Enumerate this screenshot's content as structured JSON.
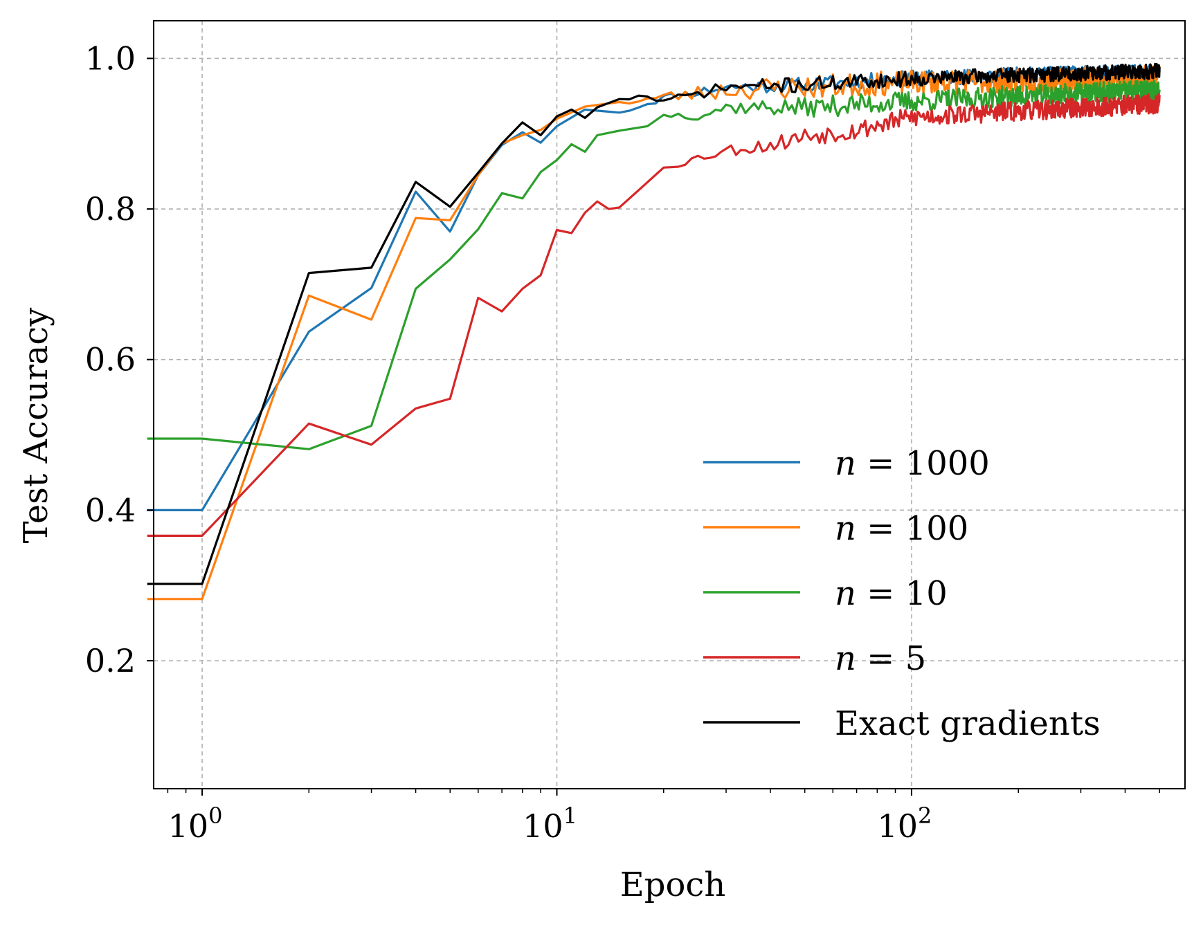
{
  "chart_data": {
    "type": "line",
    "title": "",
    "xlabel": "Epoch",
    "ylabel": "Test Accuracy",
    "xscale": "log",
    "xlim": [
      0.73,
      590
    ],
    "ylim": [
      0.03,
      1.05
    ],
    "grid": true,
    "legend_position": "lower-right",
    "x_ticks": [
      {
        "value": 1,
        "base": "10",
        "exp": "0"
      },
      {
        "value": 10,
        "base": "10",
        "exp": "1"
      },
      {
        "value": 100,
        "base": "10",
        "exp": "2"
      }
    ],
    "y_ticks": [
      {
        "value": 0.2,
        "label": "0.2"
      },
      {
        "value": 0.4,
        "label": "0.4"
      },
      {
        "value": 0.6,
        "label": "0.6"
      },
      {
        "value": 0.8,
        "label": "0.8"
      },
      {
        "value": 1.0,
        "label": "1.0"
      }
    ],
    "series": [
      {
        "name": "n = 1000",
        "var": "n",
        "rhs": " = 1000",
        "color": "#1f77b4",
        "x": [
          0.7,
          1,
          2,
          3,
          4,
          5,
          6,
          7,
          8,
          9,
          10,
          12,
          15,
          20,
          30,
          50,
          100,
          200,
          500
        ],
        "y": [
          0.4,
          0.4,
          0.637,
          0.695,
          0.823,
          0.77,
          0.845,
          0.885,
          0.902,
          0.888,
          0.91,
          0.932,
          0.928,
          0.948,
          0.962,
          0.965,
          0.974,
          0.978,
          0.982
        ],
        "noise_tail": {
          "from": 15,
          "amp": 0.01,
          "seed": 11
        }
      },
      {
        "name": "n = 100",
        "var": "n",
        "rhs": " = 100",
        "color": "#ff7f0e",
        "x": [
          0.7,
          1,
          2,
          3,
          4,
          5,
          6,
          7,
          8,
          9,
          10,
          12,
          15,
          20,
          30,
          50,
          100,
          200,
          500
        ],
        "y": [
          0.282,
          0.282,
          0.685,
          0.653,
          0.788,
          0.785,
          0.845,
          0.887,
          0.898,
          0.905,
          0.92,
          0.936,
          0.942,
          0.948,
          0.958,
          0.962,
          0.968,
          0.97,
          0.975
        ],
        "noise_tail": {
          "from": 15,
          "amp": 0.016,
          "seed": 23
        }
      },
      {
        "name": "n = 10",
        "var": "n",
        "rhs": " = 10",
        "color": "#2ca02c",
        "x": [
          0.7,
          1,
          2,
          3,
          4,
          5,
          6,
          7,
          8,
          9,
          10,
          11,
          12,
          13,
          15,
          18,
          20,
          25,
          30,
          50,
          100,
          200,
          500
        ],
        "y": [
          0.495,
          0.495,
          0.481,
          0.512,
          0.694,
          0.733,
          0.773,
          0.821,
          0.814,
          0.849,
          0.865,
          0.886,
          0.876,
          0.898,
          0.904,
          0.91,
          0.925,
          0.925,
          0.935,
          0.935,
          0.943,
          0.95,
          0.958
        ],
        "noise_tail": {
          "from": 20,
          "amp": 0.014,
          "seed": 37
        }
      },
      {
        "name": "n = 5",
        "var": "n",
        "rhs": " = 5",
        "color": "#d62728",
        "x": [
          0.7,
          1,
          2,
          3,
          4,
          5,
          6,
          7,
          8,
          9,
          10,
          11,
          12,
          13,
          14,
          15,
          17,
          20,
          25,
          30,
          40,
          50,
          70,
          100,
          200,
          500
        ],
        "y": [
          0.366,
          0.366,
          0.515,
          0.487,
          0.535,
          0.548,
          0.682,
          0.664,
          0.694,
          0.712,
          0.772,
          0.768,
          0.795,
          0.81,
          0.8,
          0.802,
          0.825,
          0.855,
          0.868,
          0.878,
          0.885,
          0.897,
          0.905,
          0.922,
          0.93,
          0.94
        ],
        "noise_tail": {
          "from": 20,
          "amp": 0.013,
          "seed": 53
        }
      },
      {
        "name": "Exact gradients",
        "var": "",
        "rhs": "Exact gradients",
        "color": "#000000",
        "x": [
          0.7,
          1,
          2,
          3,
          4,
          5,
          6,
          7,
          8,
          9,
          10,
          11,
          12,
          13,
          15,
          18,
          20,
          30,
          50,
          100,
          200,
          500
        ],
        "y": [
          0.302,
          0.302,
          0.715,
          0.722,
          0.836,
          0.803,
          0.848,
          0.887,
          0.915,
          0.898,
          0.923,
          0.932,
          0.921,
          0.935,
          0.946,
          0.95,
          0.942,
          0.962,
          0.965,
          0.973,
          0.978,
          0.983
        ],
        "noise_tail": {
          "from": 15,
          "amp": 0.01,
          "seed": 71
        }
      }
    ]
  }
}
